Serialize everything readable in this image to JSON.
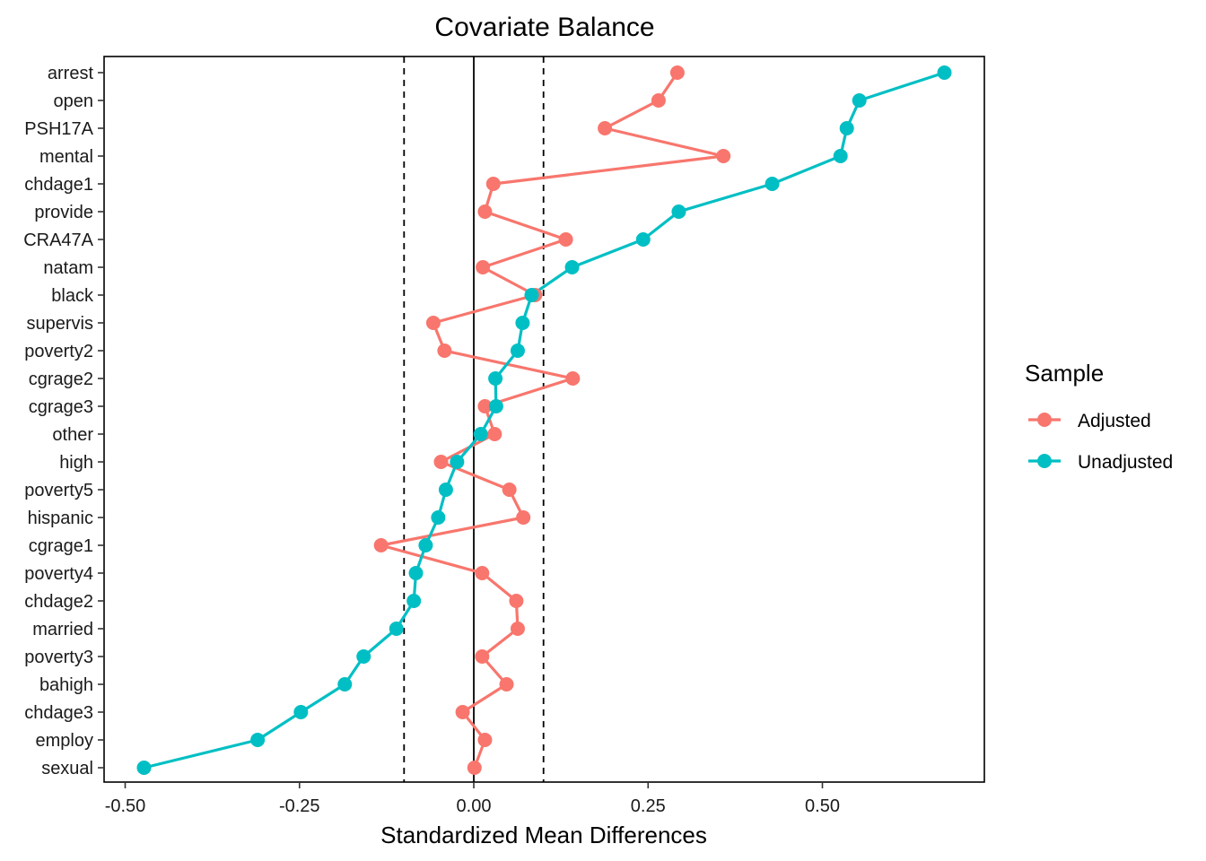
{
  "chart_data": {
    "type": "line",
    "title": "Covariate Balance",
    "xlabel": "Standardized Mean Differences",
    "ylabel": "",
    "xlim": [
      -0.51,
      0.73
    ],
    "xticks": [
      -0.5,
      -0.25,
      0.0,
      0.25,
      0.5
    ],
    "xtick_labels": [
      "-0.50",
      "-0.25",
      "0.00",
      "0.25",
      "0.50"
    ],
    "reference_lines": [
      {
        "x": -0.1,
        "style": "dashed"
      },
      {
        "x": 0.0,
        "style": "solid"
      },
      {
        "x": 0.1,
        "style": "dashed"
      }
    ],
    "categories": [
      "arrest",
      "open",
      "PSH17A",
      "mental",
      "chdage1",
      "provide",
      "CRA47A",
      "natam",
      "black",
      "supervis",
      "poverty2",
      "cgrage2",
      "cgrage3",
      "other",
      "high",
      "poverty5",
      "hispanic",
      "cgrage1",
      "poverty4",
      "chdage2",
      "married",
      "poverty3",
      "bahigh",
      "chdage3",
      "employ",
      "sexual"
    ],
    "legend": {
      "title": "Sample",
      "position": "right"
    },
    "series": [
      {
        "name": "Adjusted",
        "color": "#F8766D",
        "values": [
          0.292,
          0.265,
          0.188,
          0.358,
          0.028,
          0.016,
          0.132,
          0.013,
          0.088,
          -0.058,
          -0.042,
          0.142,
          0.016,
          0.03,
          -0.047,
          0.051,
          0.071,
          -0.133,
          0.012,
          0.061,
          0.063,
          0.012,
          0.047,
          -0.016,
          0.016,
          0.001
        ]
      },
      {
        "name": "Unadjusted",
        "color": "#00BFC4",
        "values": [
          0.675,
          0.553,
          0.535,
          0.526,
          0.428,
          0.294,
          0.243,
          0.141,
          0.083,
          0.07,
          0.063,
          0.031,
          0.032,
          0.01,
          -0.024,
          -0.04,
          -0.051,
          -0.069,
          -0.083,
          -0.086,
          -0.111,
          -0.158,
          -0.185,
          -0.248,
          -0.31,
          -0.473
        ]
      }
    ]
  }
}
